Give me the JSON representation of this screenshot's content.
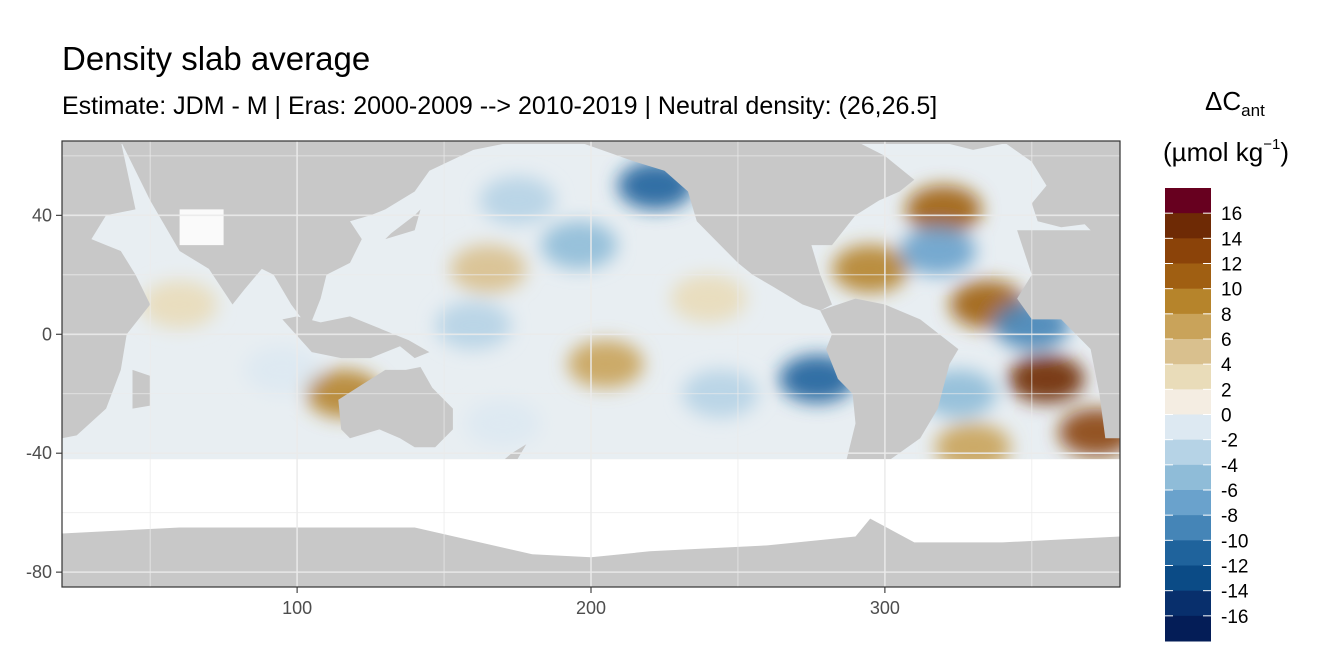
{
  "title": "Density slab average",
  "subtitle": "Estimate: JDM - M | Eras: 2000-2009 --> 2010-2019 | Neutral density: (26,26.5]",
  "colors": {
    "land": "#c8c8c8",
    "no_data": "#ffffff",
    "grid": "#ebebeb",
    "panel_border": "#333333"
  },
  "legend": {
    "title_symbol": "ΔC",
    "title_sub": "ant",
    "unit_prefix": "(µmol kg",
    "unit_sup": "−1",
    "unit_suffix": ")",
    "breaks": [
      "16",
      "14",
      "12",
      "10",
      "8",
      "6",
      "4",
      "2",
      "0",
      "-2",
      "-4",
      "-6",
      "-8",
      "-10",
      "-12",
      "-14",
      "-16"
    ],
    "colors": [
      "#67001f",
      "#6e2a05",
      "#8b4309",
      "#a05f12",
      "#b6842b",
      "#c9a35a",
      "#d9c08e",
      "#e9dcb9",
      "#f4ede2",
      "#dde9f2",
      "#b6d3e6",
      "#8fbcd8",
      "#6aa2cc",
      "#4585b7",
      "#1f639c",
      "#0b4b86",
      "#082f6c",
      "#041d57"
    ]
  },
  "chart_data": {
    "type": "heatmap",
    "title": "Density slab average",
    "subtitle": "Estimate: JDM - M | Eras: 2000-2009 --> 2010-2019 | Neutral density: (26,26.5]",
    "xlabel": "",
    "ylabel": "",
    "xlim": [
      20,
      380
    ],
    "ylim": [
      -85,
      65
    ],
    "x_ticks": [
      100,
      200,
      300
    ],
    "y_ticks": [
      40,
      0,
      -40,
      -80
    ],
    "x_tick_labels": [
      "100",
      "200",
      "300"
    ],
    "y_tick_labels": [
      "40",
      "0",
      "-40",
      "-80"
    ],
    "legend_placement": "right",
    "grid": true,
    "field_patches": [
      {
        "lon": 60,
        "lat": 10,
        "value": 2
      },
      {
        "lon": 95,
        "lat": -12,
        "value": -1
      },
      {
        "lon": 116,
        "lat": -20,
        "value": 8
      },
      {
        "lon": 165,
        "lat": 22,
        "value": 4
      },
      {
        "lon": 160,
        "lat": 3,
        "value": -3
      },
      {
        "lon": 205,
        "lat": -10,
        "value": 6
      },
      {
        "lon": 196,
        "lat": 30,
        "value": -5
      },
      {
        "lon": 175,
        "lat": 45,
        "value": -4
      },
      {
        "lon": 222,
        "lat": 50,
        "value": -12
      },
      {
        "lon": 240,
        "lat": 12,
        "value": 3
      },
      {
        "lon": 244,
        "lat": -20,
        "value": -4
      },
      {
        "lon": 277,
        "lat": -15,
        "value": -12
      },
      {
        "lon": 170,
        "lat": -30,
        "value": -2
      },
      {
        "lon": 295,
        "lat": 22,
        "value": 8
      },
      {
        "lon": 320,
        "lat": 42,
        "value": 10
      },
      {
        "lon": 318,
        "lat": 28,
        "value": -8
      },
      {
        "lon": 335,
        "lat": 10,
        "value": 10
      },
      {
        "lon": 350,
        "lat": 3,
        "value": -10
      },
      {
        "lon": 355,
        "lat": -15,
        "value": 14
      },
      {
        "lon": 325,
        "lat": -20,
        "value": -6
      },
      {
        "lon": 330,
        "lat": -38,
        "value": 6
      },
      {
        "lon": 372,
        "lat": -33,
        "value": 12
      }
    ]
  }
}
